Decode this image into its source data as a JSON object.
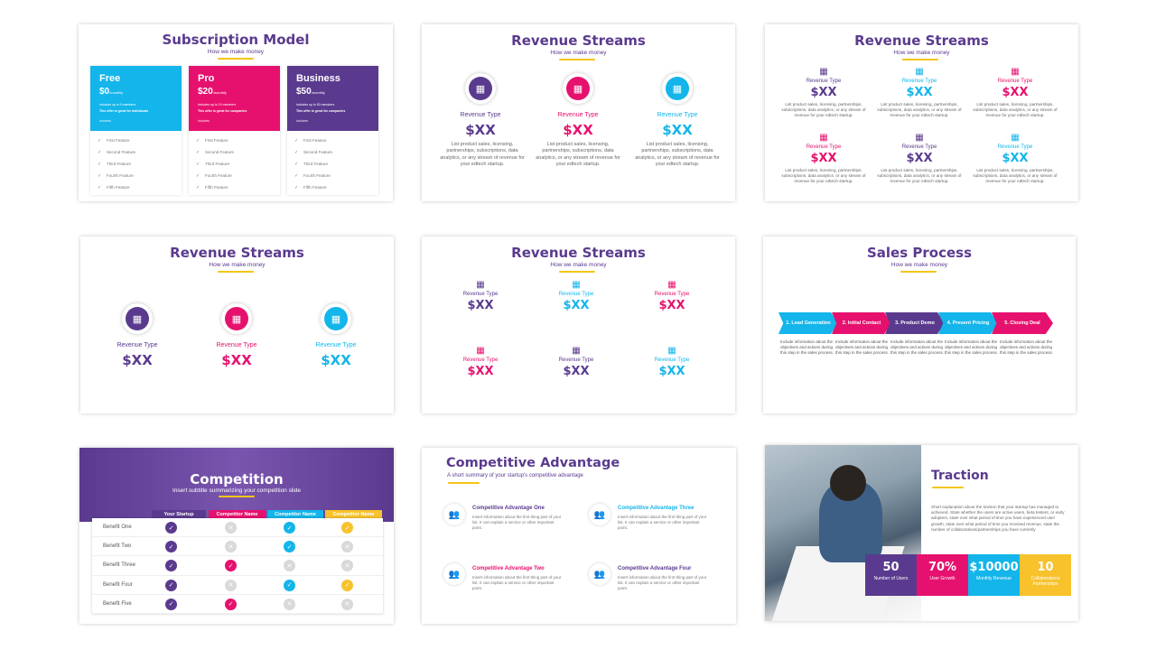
{
  "colors": {
    "purple": "#5a3a8e",
    "pink": "#e6116e",
    "cyan": "#13b5ea",
    "yellow": "#f7c22c"
  },
  "s1": {
    "title": "Subscription Model",
    "subtitle": "How we make money",
    "plans": [
      {
        "name": "Free",
        "price": "$0",
        "per": "/monthly",
        "members": "Includes up to 0 members",
        "note": "This offer is great for individuals",
        "includes": "Includes"
      },
      {
        "name": "Pro",
        "price": "$20",
        "per": "/monthly",
        "members": "Includes up to 10 members",
        "note": "This offer is great for companies",
        "includes": "Includes"
      },
      {
        "name": "Business",
        "price": "$50",
        "per": "/monthly",
        "members": "Includes up to 50 members",
        "note": "This offer is great for companies",
        "includes": "Includes"
      }
    ],
    "features": [
      "First Feature",
      "Second Feature",
      "Third Feature",
      "Fourth Feature",
      "Fifth Feature"
    ]
  },
  "s2": {
    "title": "Revenue Streams",
    "subtitle": "How we make money",
    "type": "Revenue Type",
    "value": "$XX",
    "desc": "List product sales, licensing, partnerships, subscriptions, data analytics, or any stream of revenue for your edtech startup."
  },
  "s3": {
    "title": "Revenue Streams",
    "subtitle": "How we make money",
    "type": "Revenue Type",
    "value": "$XX",
    "desc": "List product sales, licensing, partnerships, subscriptions, data analytics, or any stream of revenue for your edtech startup."
  },
  "s4": {
    "title": "Revenue Streams",
    "subtitle": "How we make money",
    "type": "Revenue Type",
    "value": "$XX"
  },
  "s5": {
    "title": "Revenue Streams",
    "subtitle": "How we make money",
    "type": "Revenue Type",
    "value": "$XX"
  },
  "s6": {
    "title": "Sales Process",
    "subtitle": "How we make money",
    "steps": [
      "1. Lead Generation",
      "2. Initial Contact",
      "3. Product Demo",
      "4. Present Pricing",
      "5. Closing Deal"
    ],
    "desc": "Include information about the objectives and actions during this step in the sales process."
  },
  "s7": {
    "title": "Competition",
    "subtitle": "Insert subtitle summarizing your competition slide",
    "cols": [
      "Your Startup",
      "Competitor Name",
      "Competitor Name",
      "Competitor Name"
    ],
    "rows": [
      "Benefit One",
      "Benefit Two",
      "Benefit Three",
      "Benefit Four",
      "Benefit Five"
    ]
  },
  "s8": {
    "title": "Competitive Advantage",
    "subtitle": "A short summary of your startup's competitive advantage",
    "items": [
      {
        "title": "Competitive Advantage One",
        "desc": "Insert information about the first thing part of your list. It can explain a service or other important point."
      },
      {
        "title": "Competitive Advantage Three",
        "desc": "Insert information about the first thing part of your list. It can explain a service or other important point."
      },
      {
        "title": "Competitive Advantage Two",
        "desc": "Insert information about the first thing part of your list. It can explain a service or other important point."
      },
      {
        "title": "Competitive Advantage Four",
        "desc": "Insert information about the first thing part of your list. It can explain a service or other important point."
      }
    ]
  },
  "s9": {
    "title": "Traction",
    "desc": "Short explanation about the traction that your startup has managed to achieved. State whether the users are active users, beta testers, or early adopters, state over what period of time you have experienced user growth, state over what period of time you received revenue, state the number of collaborations/partnerships you have currently",
    "stats": [
      {
        "value": "50",
        "label": "Number of Users"
      },
      {
        "value": "70%",
        "label": "User Growth"
      },
      {
        "value": "$10000",
        "label": "Monthly Revenue"
      },
      {
        "value": "10",
        "label": "Collaborations Partnerships"
      }
    ]
  }
}
